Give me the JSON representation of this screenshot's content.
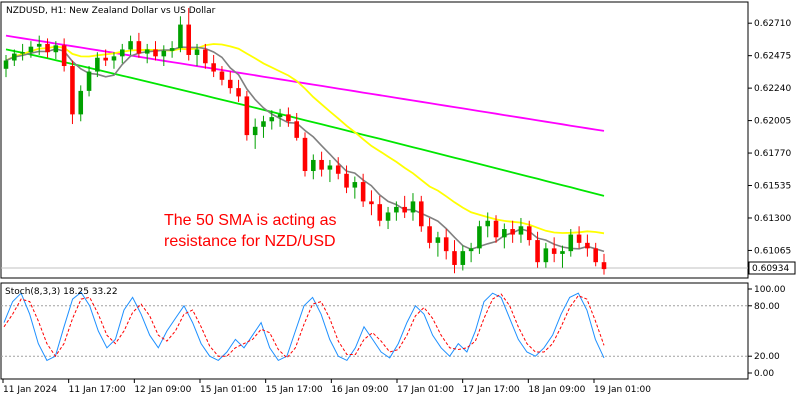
{
  "chart_data": [
    {
      "type": "candlestick",
      "header": "NZDUSD, H1:  New Zealand Dollar vs US Dollar",
      "annotation": [
        "The 50 SMA is acting as",
        "resistance for NZD/USD"
      ],
      "current_price": "0.60934",
      "ylim": [
        0.6088,
        0.6282
      ],
      "y_ticks": [
        "0.62710",
        "0.62475",
        "0.62240",
        "0.62005",
        "0.61770",
        "0.61535",
        "0.61300",
        "0.61065"
      ],
      "x_ticks": [
        "11 Jan 2024",
        "11 Jan 17:00",
        "12 Jan 09:00",
        "15 Jan 01:00",
        "15 Jan 17:00",
        "16 Jan 09:00",
        "17 Jan 01:00",
        "17 Jan 17:00",
        "18 Jan 09:00",
        "19 Jan 01:00"
      ],
      "colors": {
        "bull": "#00a000",
        "bear": "#ff0000",
        "ma_fast": "#808080",
        "ma_50": "#ffff00",
        "ma_100": "#00e600",
        "ma_200": "#ff00ff"
      },
      "candles": [
        [
          0.6238,
          0.6248,
          0.6232,
          0.6244
        ],
        [
          0.6244,
          0.6252,
          0.624,
          0.6249
        ],
        [
          0.6249,
          0.6256,
          0.6244,
          0.625
        ],
        [
          0.625,
          0.6258,
          0.6246,
          0.6254
        ],
        [
          0.6254,
          0.6262,
          0.6248,
          0.6256
        ],
        [
          0.6256,
          0.626,
          0.6246,
          0.625
        ],
        [
          0.625,
          0.6258,
          0.6245,
          0.6255
        ],
        [
          0.6255,
          0.626,
          0.6236,
          0.624
        ],
        [
          0.624,
          0.6244,
          0.6198,
          0.6205
        ],
        [
          0.6205,
          0.6226,
          0.62,
          0.6222
        ],
        [
          0.6222,
          0.624,
          0.6218,
          0.6236
        ],
        [
          0.6236,
          0.625,
          0.6232,
          0.6246
        ],
        [
          0.6246,
          0.6252,
          0.624,
          0.6244
        ],
        [
          0.6244,
          0.625,
          0.6238,
          0.6247
        ],
        [
          0.6247,
          0.6256,
          0.6242,
          0.6252
        ],
        [
          0.6252,
          0.6262,
          0.6248,
          0.6258
        ],
        [
          0.6258,
          0.6264,
          0.6246,
          0.6249
        ],
        [
          0.6249,
          0.6256,
          0.6242,
          0.6252
        ],
        [
          0.6252,
          0.6258,
          0.6244,
          0.6247
        ],
        [
          0.6247,
          0.6255,
          0.624,
          0.6251
        ],
        [
          0.6251,
          0.6258,
          0.6246,
          0.6253
        ],
        [
          0.6253,
          0.6276,
          0.625,
          0.627
        ],
        [
          0.627,
          0.6282,
          0.6244,
          0.6248
        ],
        [
          0.6248,
          0.6256,
          0.624,
          0.6252
        ],
        [
          0.6252,
          0.6256,
          0.6238,
          0.6242
        ],
        [
          0.6242,
          0.6248,
          0.6232,
          0.6236
        ],
        [
          0.6236,
          0.624,
          0.6226,
          0.623
        ],
        [
          0.623,
          0.6236,
          0.622,
          0.6224
        ],
        [
          0.6224,
          0.623,
          0.6214,
          0.6218
        ],
        [
          0.6218,
          0.6222,
          0.6186,
          0.619
        ],
        [
          0.619,
          0.6202,
          0.618,
          0.6196
        ],
        [
          0.6196,
          0.6204,
          0.6188,
          0.62
        ],
        [
          0.62,
          0.6208,
          0.6194,
          0.6203
        ],
        [
          0.6203,
          0.6209,
          0.6196,
          0.6205
        ],
        [
          0.6205,
          0.621,
          0.6196,
          0.62
        ],
        [
          0.62,
          0.6206,
          0.6186,
          0.6188
        ],
        [
          0.6188,
          0.6192,
          0.616,
          0.6164
        ],
        [
          0.6164,
          0.6176,
          0.6158,
          0.6172
        ],
        [
          0.6172,
          0.6178,
          0.616,
          0.6165
        ],
        [
          0.6165,
          0.6172,
          0.6156,
          0.6168
        ],
        [
          0.6168,
          0.6174,
          0.6158,
          0.6162
        ],
        [
          0.6162,
          0.6168,
          0.6148,
          0.6152
        ],
        [
          0.6152,
          0.616,
          0.6144,
          0.6156
        ],
        [
          0.6156,
          0.6162,
          0.6138,
          0.6142
        ],
        [
          0.6142,
          0.615,
          0.6132,
          0.614
        ],
        [
          0.614,
          0.6146,
          0.6124,
          0.6128
        ],
        [
          0.6128,
          0.6138,
          0.6122,
          0.6134
        ],
        [
          0.6134,
          0.6142,
          0.6128,
          0.6138
        ],
        [
          0.6138,
          0.6146,
          0.613,
          0.6134
        ],
        [
          0.6134,
          0.6148,
          0.6128,
          0.6142
        ],
        [
          0.6142,
          0.6146,
          0.612,
          0.6124
        ],
        [
          0.6124,
          0.613,
          0.6108,
          0.6112
        ],
        [
          0.6112,
          0.612,
          0.6102,
          0.6116
        ],
        [
          0.6116,
          0.6122,
          0.61,
          0.6106
        ],
        [
          0.6106,
          0.6114,
          0.609,
          0.6096
        ],
        [
          0.6096,
          0.611,
          0.6092,
          0.6106
        ],
        [
          0.6106,
          0.6112,
          0.6098,
          0.6108
        ],
        [
          0.6108,
          0.6128,
          0.6104,
          0.6124
        ],
        [
          0.6124,
          0.6134,
          0.6116,
          0.6128
        ],
        [
          0.6128,
          0.6132,
          0.6112,
          0.6116
        ],
        [
          0.6116,
          0.6126,
          0.6108,
          0.6122
        ],
        [
          0.6122,
          0.6128,
          0.6112,
          0.6118
        ],
        [
          0.6118,
          0.613,
          0.6112,
          0.6124
        ],
        [
          0.6124,
          0.6128,
          0.611,
          0.6114
        ],
        [
          0.6114,
          0.612,
          0.6094,
          0.6098
        ],
        [
          0.6098,
          0.6112,
          0.6094,
          0.6108
        ],
        [
          0.6108,
          0.6116,
          0.6098,
          0.6104
        ],
        [
          0.6104,
          0.611,
          0.6094,
          0.6106
        ],
        [
          0.6106,
          0.6122,
          0.6102,
          0.6118
        ],
        [
          0.6118,
          0.6124,
          0.6108,
          0.6112
        ],
        [
          0.6112,
          0.6118,
          0.6102,
          0.6108
        ],
        [
          0.6108,
          0.6112,
          0.6095,
          0.6098
        ],
        [
          0.6098,
          0.6104,
          0.6089,
          0.6093
        ]
      ]
    },
    {
      "type": "line",
      "header": "Stoch(8,3,3) 18.25 33.22",
      "ylim": [
        0,
        100
      ],
      "y_ticks": [
        "100.00",
        "80.00",
        "20.00",
        "0.00"
      ],
      "levels": [
        80,
        20
      ],
      "series": [
        {
          "color": "#1e90ff",
          "values": [
            60,
            85,
            95,
            70,
            35,
            15,
            20,
            55,
            88,
            96,
            80,
            50,
            30,
            40,
            75,
            90,
            70,
            45,
            30,
            50,
            65,
            80,
            60,
            35,
            20,
            15,
            25,
            40,
            30,
            45,
            60,
            30,
            15,
            20,
            50,
            80,
            90,
            70,
            40,
            20,
            15,
            30,
            55,
            40,
            25,
            18,
            35,
            60,
            80,
            70,
            45,
            30,
            20,
            35,
            25,
            50,
            85,
            95,
            90,
            65,
            40,
            25,
            20,
            30,
            45,
            70,
            90,
            95,
            75,
            40,
            18
          ]
        },
        {
          "color": "#ff0000",
          "values": [
            55,
            70,
            88,
            85,
            62,
            35,
            20,
            35,
            65,
            88,
            90,
            70,
            45,
            35,
            50,
            72,
            82,
            68,
            45,
            38,
            50,
            70,
            75,
            55,
            32,
            20,
            20,
            30,
            35,
            40,
            52,
            48,
            28,
            18,
            30,
            58,
            82,
            85,
            65,
            38,
            22,
            22,
            40,
            48,
            38,
            25,
            28,
            45,
            68,
            78,
            65,
            45,
            30,
            28,
            30,
            38,
            65,
            88,
            94,
            80,
            55,
            35,
            25,
            25,
            35,
            55,
            78,
            92,
            88,
            62,
            33
          ]
        }
      ]
    }
  ]
}
